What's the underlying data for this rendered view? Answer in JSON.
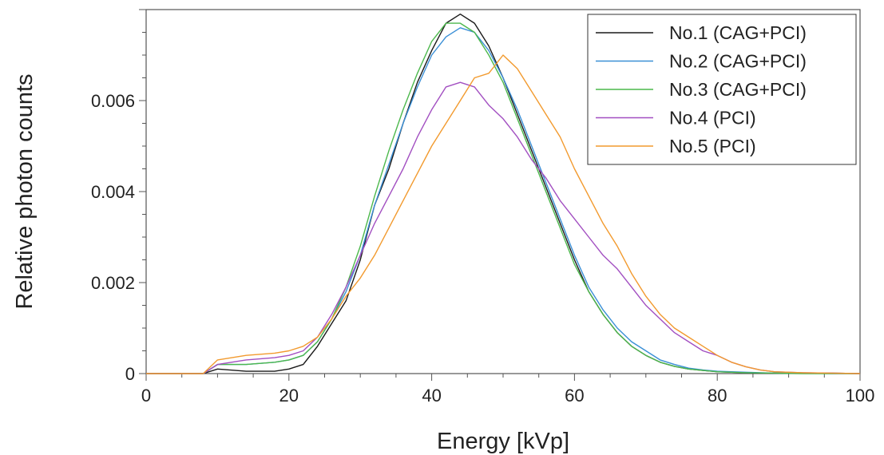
{
  "chart_data": {
    "type": "line",
    "title": "",
    "xlabel": "Energy [kVp]",
    "ylabel": "Relative photon counts",
    "xlim": [
      0,
      100
    ],
    "ylim": [
      0,
      0.008
    ],
    "x_ticks": [
      "0",
      "20",
      "40",
      "60",
      "80",
      "100"
    ],
    "x_tick_values": [
      0,
      20,
      40,
      60,
      80,
      100
    ],
    "y_ticks": [
      "0",
      "0.002",
      "0.004",
      "0.006"
    ],
    "y_tick_values": [
      0,
      0.002,
      0.004,
      0.006
    ],
    "grid": false,
    "legend_position": "top-right",
    "series": [
      {
        "name": "No.1 (CAG+PCI)",
        "color": "#1a1a1a",
        "x": [
          0,
          8,
          10,
          14,
          18,
          20,
          22,
          24,
          26,
          28,
          30,
          32,
          34,
          36,
          38,
          40,
          42,
          44,
          46,
          48,
          50,
          52,
          54,
          56,
          58,
          60,
          62,
          64,
          66,
          68,
          70,
          72,
          74,
          76,
          78,
          80,
          84,
          88,
          92,
          96,
          100
        ],
        "y": [
          0,
          0,
          0.0001,
          5e-05,
          5e-05,
          0.0001,
          0.0002,
          0.0006,
          0.0011,
          0.0016,
          0.0025,
          0.0037,
          0.0045,
          0.0055,
          0.0064,
          0.0071,
          0.0077,
          0.0079,
          0.0077,
          0.0072,
          0.0065,
          0.0057,
          0.0049,
          0.0041,
          0.0033,
          0.0025,
          0.0018,
          0.0013,
          0.0009,
          0.0006,
          0.0004,
          0.00025,
          0.00016,
          0.0001,
          7e-05,
          4e-05,
          2e-05,
          1e-05,
          1e-05,
          1e-05,
          0
        ]
      },
      {
        "name": "No.2 (CAG+PCI)",
        "color": "#3a8fd6",
        "x": [
          0,
          8,
          10,
          14,
          18,
          20,
          22,
          24,
          26,
          28,
          30,
          32,
          34,
          36,
          38,
          40,
          42,
          44,
          46,
          48,
          50,
          52,
          54,
          56,
          58,
          60,
          62,
          64,
          66,
          68,
          70,
          72,
          74,
          76,
          78,
          80,
          84,
          88,
          92,
          96,
          100
        ],
        "y": [
          0,
          0,
          0.0002,
          0.0002,
          0.00025,
          0.0003,
          0.0004,
          0.0007,
          0.0012,
          0.0018,
          0.0026,
          0.0037,
          0.0046,
          0.0055,
          0.0063,
          0.007,
          0.0074,
          0.0076,
          0.0075,
          0.0071,
          0.0065,
          0.0058,
          0.005,
          0.0042,
          0.0034,
          0.0026,
          0.0019,
          0.0014,
          0.001,
          0.0007,
          0.0005,
          0.0003,
          0.0002,
          0.00012,
          8e-05,
          5e-05,
          3e-05,
          1e-05,
          1e-05,
          0,
          0
        ]
      },
      {
        "name": "No.3 (CAG+PCI)",
        "color": "#4cb84c",
        "x": [
          0,
          8,
          10,
          14,
          18,
          20,
          22,
          24,
          26,
          28,
          30,
          32,
          34,
          36,
          38,
          40,
          42,
          44,
          46,
          48,
          50,
          52,
          54,
          56,
          58,
          60,
          62,
          64,
          66,
          68,
          70,
          72,
          74,
          76,
          78,
          80,
          84,
          88,
          92,
          96,
          100
        ],
        "y": [
          0,
          0,
          0.0002,
          0.0002,
          0.00025,
          0.0003,
          0.0004,
          0.0007,
          0.0012,
          0.0019,
          0.0028,
          0.0039,
          0.0049,
          0.0058,
          0.0066,
          0.0073,
          0.0077,
          0.0077,
          0.0075,
          0.007,
          0.0064,
          0.0056,
          0.0048,
          0.004,
          0.0032,
          0.0024,
          0.0018,
          0.0013,
          0.0009,
          0.0006,
          0.0004,
          0.00025,
          0.00016,
          0.0001,
          7e-05,
          4e-05,
          2e-05,
          1e-05,
          0,
          0,
          0
        ]
      },
      {
        "name": "No.4 (PCI)",
        "color": "#a24fc1",
        "x": [
          0,
          8,
          10,
          14,
          18,
          20,
          22,
          24,
          26,
          28,
          30,
          32,
          34,
          36,
          38,
          40,
          42,
          44,
          46,
          48,
          50,
          52,
          54,
          56,
          58,
          60,
          62,
          64,
          66,
          68,
          70,
          72,
          74,
          76,
          78,
          80,
          82,
          84,
          86,
          88,
          92,
          96,
          100
        ],
        "y": [
          0,
          0,
          0.0002,
          0.0003,
          0.00035,
          0.0004,
          0.0005,
          0.0008,
          0.0013,
          0.0019,
          0.0026,
          0.0033,
          0.0039,
          0.0045,
          0.0052,
          0.0058,
          0.0063,
          0.0064,
          0.0063,
          0.0059,
          0.0056,
          0.0052,
          0.0047,
          0.0043,
          0.0038,
          0.0034,
          0.003,
          0.0026,
          0.0023,
          0.0019,
          0.0015,
          0.0012,
          0.0009,
          0.0007,
          0.0005,
          0.0004,
          0.00025,
          0.00015,
          8e-05,
          4e-05,
          2e-05,
          1e-05,
          0
        ]
      },
      {
        "name": "No.5 (PCI)",
        "color": "#f29a2e",
        "x": [
          0,
          8,
          10,
          14,
          18,
          20,
          22,
          24,
          26,
          28,
          30,
          32,
          34,
          36,
          38,
          40,
          42,
          44,
          46,
          48,
          50,
          52,
          54,
          56,
          58,
          60,
          62,
          64,
          66,
          68,
          70,
          72,
          74,
          76,
          78,
          80,
          82,
          84,
          86,
          88,
          92,
          96,
          100
        ],
        "y": [
          0,
          0,
          0.0003,
          0.0004,
          0.00045,
          0.0005,
          0.0006,
          0.0008,
          0.0012,
          0.0017,
          0.0021,
          0.0026,
          0.0032,
          0.0038,
          0.0044,
          0.005,
          0.0055,
          0.006,
          0.0065,
          0.0066,
          0.007,
          0.0067,
          0.0062,
          0.0057,
          0.0052,
          0.0045,
          0.0039,
          0.0033,
          0.0028,
          0.0022,
          0.0017,
          0.0013,
          0.001,
          0.0008,
          0.0006,
          0.0004,
          0.00025,
          0.00015,
          8e-05,
          4e-05,
          2e-05,
          1e-05,
          0
        ]
      }
    ]
  }
}
